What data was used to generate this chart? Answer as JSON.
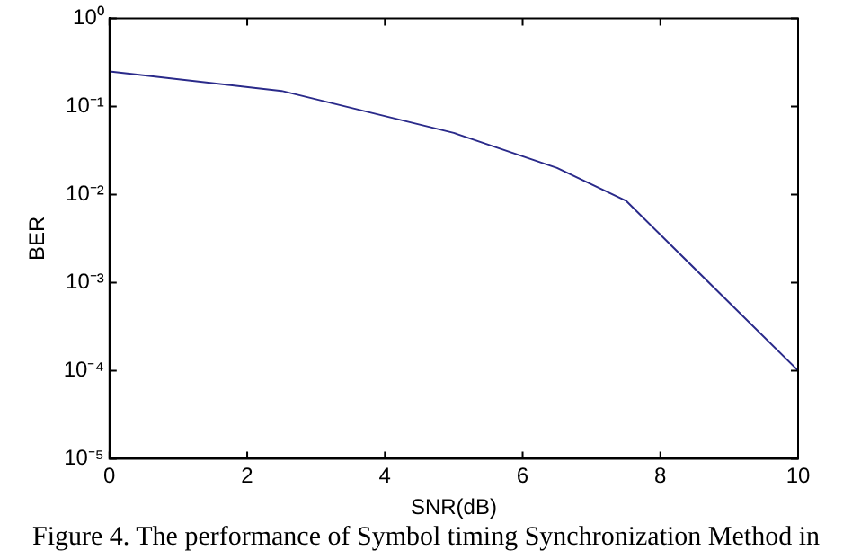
{
  "chart_data": {
    "type": "line",
    "xlabel": "SNR(dB)",
    "ylabel": "BER",
    "x": [
      0,
      2.5,
      5,
      6.5,
      7.5,
      10
    ],
    "series": [
      {
        "color": "#2a2a8a",
        "values": [
          0.25,
          0.15,
          0.05,
          0.02,
          0.0085,
          0.0001
        ]
      }
    ],
    "log": "y",
    "xlim": [
      0,
      10
    ],
    "xticks": [
      0,
      2,
      4,
      6,
      8,
      10
    ],
    "ylim": [
      1e-05,
      1
    ],
    "yticks": [
      {
        "value": 1e-05,
        "label": "10⁻⁵"
      },
      {
        "value": 0.0001,
        "label": "10⁻⁴"
      },
      {
        "value": 0.001,
        "label": "10⁻³"
      },
      {
        "value": 0.01,
        "label": "10⁻²"
      },
      {
        "value": 0.1,
        "label": "10⁻¹"
      },
      {
        "value": 1,
        "label": "10⁰"
      }
    ],
    "grid": false,
    "legend": false,
    "marker": "none",
    "line_style": "solid",
    "annotations": [
      "Figure 4. The performance of Symbol timing Synchronization Method in"
    ]
  }
}
